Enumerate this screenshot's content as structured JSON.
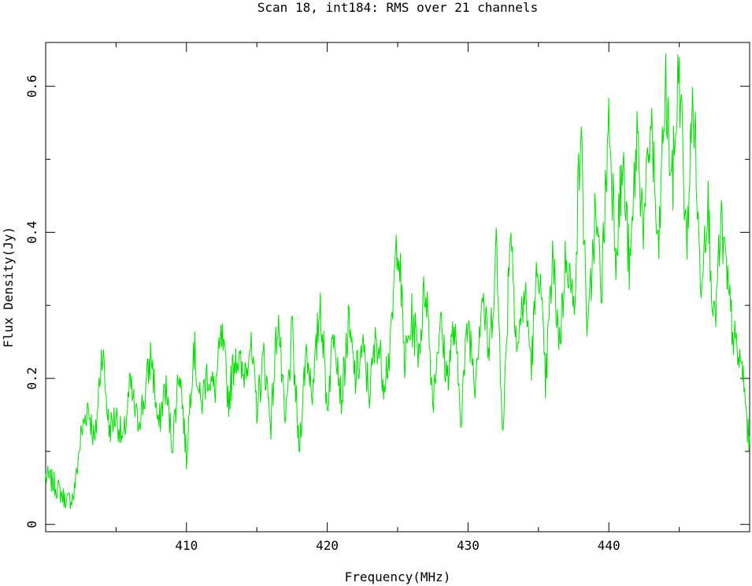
{
  "chart_data": {
    "type": "line",
    "title": "Scan 18, int184: RMS over 21 channels",
    "xlabel": "Frequency(MHz)",
    "ylabel": "Flux Density(Jy)",
    "xlim": [
      400,
      450
    ],
    "ylim": [
      -0.01,
      0.66
    ],
    "xticks_major": [
      400,
      410,
      420,
      430,
      440,
      450
    ],
    "xtick_labels": [
      "410",
      "420",
      "430",
      "440"
    ],
    "yticks_major": [
      0,
      0.2,
      0.4,
      0.6
    ],
    "ytick_labels": [
      "0",
      "0.2",
      "0.4",
      "0.6"
    ],
    "grid": false,
    "series": [
      {
        "color": "#00e000",
        "x": [
          400.0,
          400.5,
          401.0,
          401.5,
          402.0,
          402.5,
          403.0,
          403.5,
          404.0,
          404.5,
          405.0,
          405.5,
          406.0,
          406.5,
          407.0,
          407.5,
          408.0,
          408.5,
          409.0,
          409.5,
          410.0,
          410.5,
          411.0,
          411.5,
          412.0,
          412.5,
          413.0,
          413.5,
          414.0,
          414.5,
          415.0,
          415.5,
          416.0,
          416.5,
          417.0,
          417.5,
          418.0,
          418.5,
          419.0,
          419.5,
          420.0,
          420.5,
          421.0,
          421.5,
          422.0,
          422.5,
          423.0,
          423.5,
          424.0,
          424.5,
          425.0,
          425.5,
          426.0,
          426.5,
          427.0,
          427.5,
          428.0,
          428.5,
          429.0,
          429.5,
          430.0,
          430.5,
          431.0,
          431.5,
          432.0,
          432.5,
          433.0,
          433.5,
          434.0,
          434.5,
          435.0,
          435.5,
          436.0,
          436.5,
          437.0,
          437.5,
          438.0,
          438.5,
          439.0,
          439.5,
          440.0,
          440.5,
          441.0,
          441.5,
          442.0,
          442.5,
          443.0,
          443.5,
          444.0,
          444.5,
          445.0,
          445.5,
          446.0,
          446.5,
          447.0,
          447.5,
          448.0,
          448.5,
          449.0,
          449.5,
          450.0
        ],
        "y": [
          0.065,
          0.058,
          0.045,
          0.03,
          0.04,
          0.12,
          0.165,
          0.11,
          0.245,
          0.13,
          0.15,
          0.11,
          0.19,
          0.14,
          0.17,
          0.235,
          0.13,
          0.19,
          0.11,
          0.22,
          0.09,
          0.25,
          0.16,
          0.21,
          0.18,
          0.255,
          0.17,
          0.24,
          0.2,
          0.25,
          0.16,
          0.23,
          0.14,
          0.29,
          0.13,
          0.26,
          0.1,
          0.24,
          0.18,
          0.31,
          0.16,
          0.28,
          0.17,
          0.27,
          0.2,
          0.24,
          0.18,
          0.26,
          0.2,
          0.24,
          0.41,
          0.22,
          0.28,
          0.24,
          0.335,
          0.17,
          0.28,
          0.2,
          0.27,
          0.15,
          0.28,
          0.2,
          0.32,
          0.23,
          0.38,
          0.12,
          0.42,
          0.24,
          0.32,
          0.22,
          0.37,
          0.19,
          0.36,
          0.25,
          0.38,
          0.29,
          0.54,
          0.25,
          0.42,
          0.33,
          0.56,
          0.38,
          0.49,
          0.34,
          0.54,
          0.4,
          0.56,
          0.36,
          0.6,
          0.46,
          0.63,
          0.38,
          0.59,
          0.33,
          0.45,
          0.27,
          0.41,
          0.31,
          0.24,
          0.21,
          0.1
        ]
      }
    ]
  }
}
